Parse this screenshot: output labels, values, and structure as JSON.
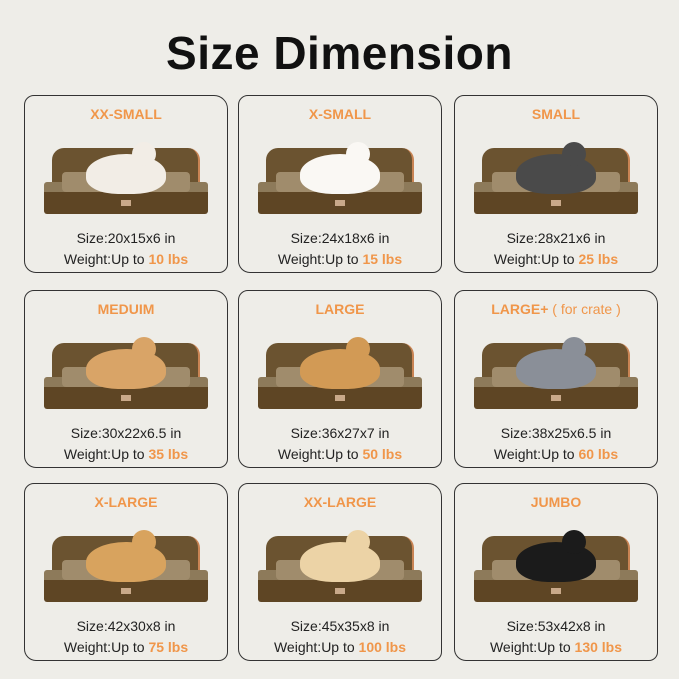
{
  "title": "Size Dimension",
  "size_prefix": "Size:",
  "weight_prefix": "Weight:",
  "weight_up_to": "Up to",
  "colors": {
    "accent": "#f0964a",
    "bed": "#6b5330",
    "background": "#eeede8"
  },
  "items": [
    {
      "name": "XX-SMALL",
      "note": "",
      "size": "20x15x6 in",
      "weight": "10 lbs",
      "pet": "ragdoll-cat",
      "pet_color": "#f2ede6"
    },
    {
      "name": "X-SMALL",
      "note": "",
      "size": "24x18x6 in",
      "weight": "15 lbs",
      "pet": "pomeranian",
      "pet_color": "#faf8f4"
    },
    {
      "name": "SMALL",
      "note": "",
      "size": "28x21x6 in",
      "weight": "25 lbs",
      "pet": "schnauzer",
      "pet_color": "#4a4a4a"
    },
    {
      "name": "MEDUIM",
      "note": "",
      "size": "30x22x6.5 in",
      "weight": "35 lbs",
      "pet": "corgi",
      "pet_color": "#d9a467"
    },
    {
      "name": "LARGE",
      "note": "",
      "size": "36x27x7 in",
      "weight": "50 lbs",
      "pet": "golden-retriever",
      "pet_color": "#d29a55"
    },
    {
      "name": "LARGE+",
      "note": "( for crate )",
      "size": "38x25x6.5 in",
      "weight": "60 lbs",
      "pet": "australian-shepherd",
      "pet_color": "#8a8f98"
    },
    {
      "name": "X-LARGE",
      "note": "",
      "size": "42x30x8 in",
      "weight": "75 lbs",
      "pet": "golden-retriever",
      "pet_color": "#d8a35e"
    },
    {
      "name": "XX-LARGE",
      "note": "",
      "size": "45x35x8 in",
      "weight": "100 lbs",
      "pet": "labrador",
      "pet_color": "#ecd3a6"
    },
    {
      "name": "JUMBO",
      "note": "",
      "size": "53x42x8 in",
      "weight": "130 lbs",
      "pet": "bernese-mountain-dog",
      "pet_color": "#1b1b1b"
    }
  ]
}
